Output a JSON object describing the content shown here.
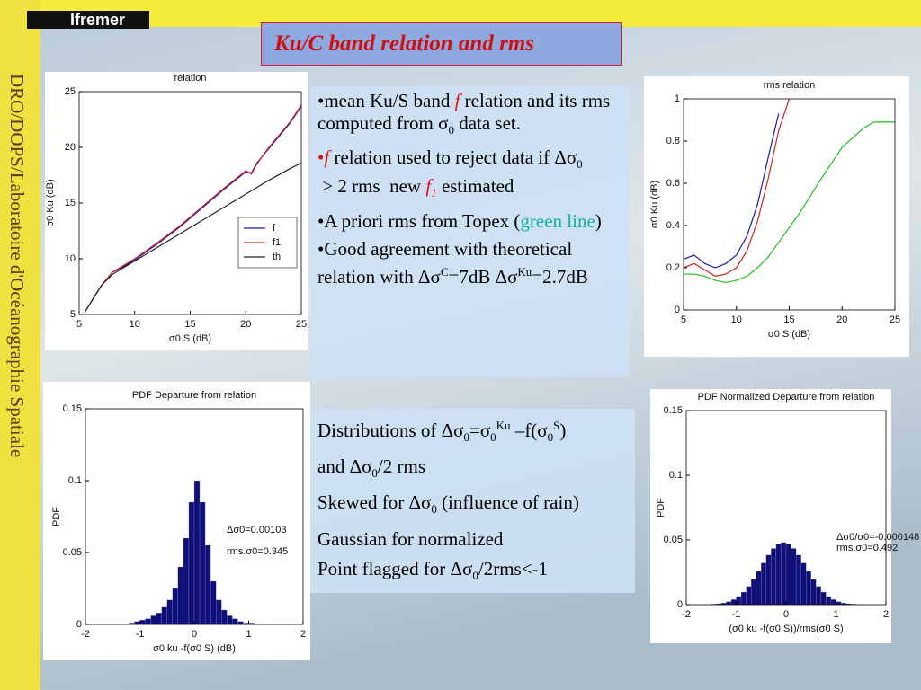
{
  "header": {
    "logo": "Ifremer",
    "title": "Ku/C band relation and rms"
  },
  "sidebar": {
    "text": "DRO/DOPS/Laboratoire d'Océanographie Spatiale"
  },
  "text_box_1": {
    "bullets": [
      [
        "•mean Ku/S band ",
        "f",
        " relation and its rms computed from σ",
        "0",
        " data set."
      ],
      [
        "•",
        "f",
        " relation used to reject data if Δσ",
        "0",
        " > 2 rms  new ",
        "f",
        "1",
        " estimated"
      ],
      [
        "•A priori rms from Topex (",
        "green line",
        ")"
      ],
      [
        "•Good agreement with theoretical relation with Δσ",
        "C",
        "=7dB Δσ",
        "Ku",
        "=2.7dB"
      ]
    ]
  },
  "text_box_2": {
    "lines": [
      [
        "Distributions of Δσ",
        "0",
        "=σ",
        "0",
        "Ku",
        " –f(σ",
        "0",
        "S",
        ")"
      ],
      [
        "and Δσ",
        "0",
        "/2 rms"
      ],
      [
        "Skewed for Δσ",
        "0",
        " (influence of rain)"
      ],
      [
        "Gaussian for normalized"
      ],
      [
        "Point flagged for Δσ",
        "0",
        "/2rms<-1"
      ]
    ]
  },
  "chart_data": [
    {
      "type": "line",
      "title": "relation",
      "x_label": "σ0 S (dB)",
      "y_label": "σ0 Ku (dB)",
      "x": [
        5.5,
        6,
        7,
        8,
        9,
        10,
        12,
        14,
        16,
        18,
        20,
        20.5,
        21,
        22,
        24,
        25
      ],
      "series": [
        {
          "name": "f",
          "color": "#1a1aa8",
          "values": [
            5.2,
            6,
            7.6,
            8.8,
            9.3,
            9.9,
            11.3,
            12.8,
            14.5,
            16.2,
            17.8,
            17.7,
            18.6,
            19.8,
            22.2,
            23.7
          ]
        },
        {
          "name": "f1",
          "color": "#d42020",
          "values": [
            5.2,
            6,
            7.6,
            8.8,
            9.4,
            10,
            11.4,
            12.9,
            14.6,
            16.3,
            17.9,
            17.6,
            18.5,
            19.9,
            22.3,
            23.8
          ]
        },
        {
          "name": "th",
          "color": "#222222",
          "values": [
            5.2,
            6,
            7.6,
            8.6,
            9.2,
            9.8,
            11,
            12.2,
            13.4,
            14.6,
            15.8,
            16.1,
            16.4,
            17,
            18.1,
            18.6
          ]
        }
      ],
      "xlim": [
        5,
        25
      ],
      "ylim": [
        5,
        25
      ],
      "xticks": [
        5,
        10,
        15,
        20,
        25
      ],
      "yticks": [
        5,
        10,
        15,
        20,
        25
      ],
      "legend": "right"
    },
    {
      "type": "line",
      "title": "rms relation",
      "x_label": "σ0 S (dB)",
      "y_label": "σ0 Ku (dB)",
      "x": [
        5,
        6,
        7,
        8,
        9,
        10,
        11,
        12,
        13,
        14,
        15,
        16,
        18,
        20,
        22,
        23,
        25
      ],
      "series": [
        {
          "color": "#1a1aa8",
          "values": [
            0.24,
            0.26,
            0.22,
            0.2,
            0.22,
            0.26,
            0.35,
            0.5,
            0.72,
            0.93,
            null,
            null,
            null,
            null,
            null,
            null,
            null
          ]
        },
        {
          "color": "#d42020",
          "values": [
            0.2,
            0.22,
            0.19,
            0.16,
            0.17,
            0.2,
            0.28,
            0.42,
            0.62,
            0.85,
            1.0,
            null,
            null,
            null,
            null,
            null,
            null
          ]
        },
        {
          "color": "#20c020",
          "values": [
            0.17,
            0.17,
            0.16,
            0.14,
            0.13,
            0.14,
            0.16,
            0.2,
            0.25,
            0.32,
            0.39,
            0.46,
            0.62,
            0.77,
            0.86,
            0.89,
            0.89
          ]
        }
      ],
      "xlim": [
        5,
        25
      ],
      "ylim": [
        0,
        1
      ],
      "xticks": [
        5,
        10,
        15,
        20,
        25
      ],
      "yticks": [
        0,
        0.2,
        0.4,
        0.6,
        0.8,
        1
      ]
    },
    {
      "type": "histogram",
      "title": "PDF Departure from relation",
      "x_label": "σ0 ku -f(σ0 S) (dB)",
      "y_label": "PDF",
      "bins": [
        -1.2,
        -1.1,
        -1,
        -0.9,
        -0.8,
        -0.7,
        -0.6,
        -0.5,
        -0.4,
        -0.3,
        -0.2,
        -0.1,
        0,
        0.1,
        0.2,
        0.3,
        0.4,
        0.5,
        0.6,
        0.7,
        0.8,
        0.9,
        1,
        1.1,
        1.2
      ],
      "values": [
        0.001,
        0.002,
        0.003,
        0.004,
        0.006,
        0.008,
        0.012,
        0.017,
        0.025,
        0.04,
        0.06,
        0.085,
        0.1,
        0.085,
        0.055,
        0.03,
        0.017,
        0.01,
        0.006,
        0.004,
        0.002,
        0.001,
        0.001,
        0.0005
      ],
      "color": "#10107a",
      "xlim": [
        -2,
        2
      ],
      "ylim": [
        0,
        0.15
      ],
      "xticks": [
        -2,
        -1,
        0,
        1,
        2
      ],
      "yticks": [
        0,
        0.05,
        0.1,
        0.15
      ],
      "annotations": [
        "Δσ0=0.00103",
        "rms.σ0=0.345"
      ]
    },
    {
      "type": "histogram",
      "title": "PDF Normalized Departure from relation",
      "x_label": "(σ0 ku -f(σ0 S))/rms(σ0 S)",
      "y_label": "PDF",
      "bins": [
        -1.5,
        -1.4,
        -1.3,
        -1.2,
        -1.1,
        -1,
        -0.9,
        -0.8,
        -0.7,
        -0.6,
        -0.5,
        -0.4,
        -0.3,
        -0.2,
        -0.1,
        0,
        0.1,
        0.2,
        0.3,
        0.4,
        0.5,
        0.6,
        0.7,
        0.8,
        0.9,
        1,
        1.1,
        1.2,
        1.3,
        1.4,
        1.5
      ],
      "values": [
        0.0004,
        0.0007,
        0.0013,
        0.0023,
        0.0039,
        0.0063,
        0.0097,
        0.0141,
        0.0195,
        0.0257,
        0.0322,
        0.0383,
        0.0434,
        0.0468,
        0.048,
        0.0468,
        0.0434,
        0.0383,
        0.0322,
        0.0257,
        0.0195,
        0.0141,
        0.0097,
        0.0063,
        0.0039,
        0.0023,
        0.0013,
        0.0007,
        0.0004,
        0.0002
      ],
      "color": "#10107a",
      "xlim": [
        -2,
        2
      ],
      "ylim": [
        0,
        0.15
      ],
      "xticks": [
        -2,
        -1,
        0,
        1,
        2
      ],
      "yticks": [
        0,
        0.05,
        0.1,
        0.15
      ],
      "annotations": [
        "Δσ0/σ0=-0.000148",
        "rms.σ0=0.492"
      ]
    }
  ]
}
